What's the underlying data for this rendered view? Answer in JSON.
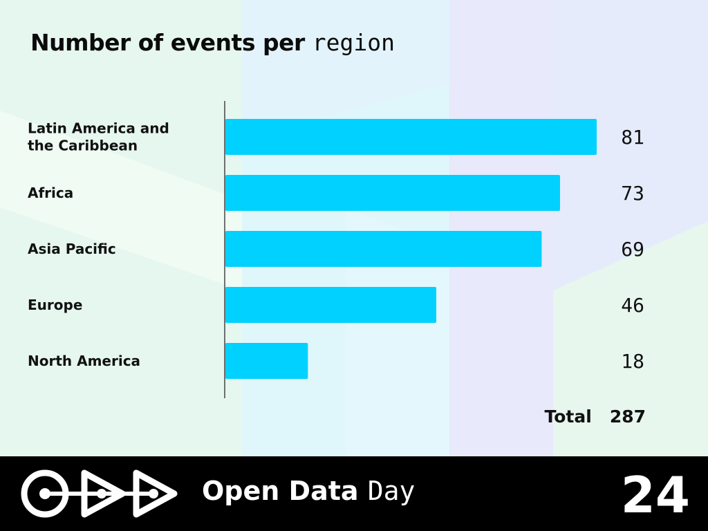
{
  "title": {
    "text": "Number of events per ",
    "mono": "region"
  },
  "chart_data": {
    "type": "bar",
    "orientation": "horizontal",
    "categories": [
      "Latin America and the Caribbean",
      "Africa",
      "Asia Pacific",
      "Europe",
      "North America"
    ],
    "category_lines": [
      [
        "Latin America and",
        "the Caribbean"
      ],
      [
        "Africa"
      ],
      [
        "Asia Pacific"
      ],
      [
        "Europe"
      ],
      [
        "North America"
      ]
    ],
    "values": [
      81,
      73,
      69,
      46,
      18
    ],
    "xlim": [
      0,
      81
    ],
    "bar_color": "#00d1ff",
    "grid": false
  },
  "total": {
    "label": "Total",
    "value": "287"
  },
  "footer": {
    "brand_text": "Open Data ",
    "brand_mono": "Day",
    "year": "24",
    "logo_icon": "odd-logo-icon"
  }
}
